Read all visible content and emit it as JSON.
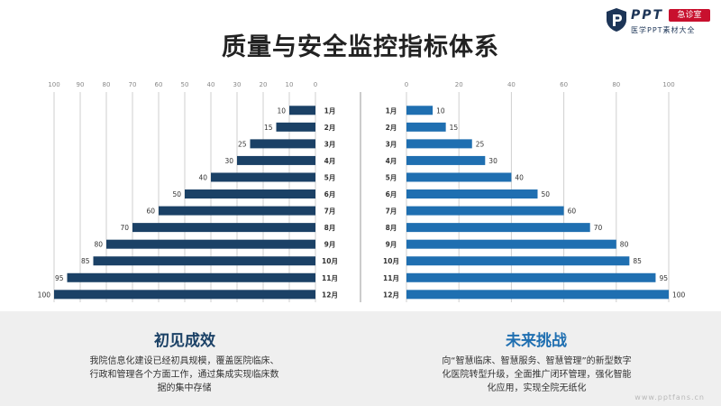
{
  "logo": {
    "mark": "PPT",
    "badge": "急诊室",
    "subtitle": "医学PPT素材大全"
  },
  "title": "质量与安全监控指标体系",
  "colors": {
    "left_bar": "#1b4166",
    "right_bar": "#1f6fb1",
    "grid": "#cfcfcf"
  },
  "chart_data": [
    {
      "type": "bar",
      "orientation": "horizontal-reversed",
      "categories": [
        "1月",
        "2月",
        "3月",
        "4月",
        "5月",
        "6月",
        "7月",
        "8月",
        "9月",
        "10月",
        "11月",
        "12月"
      ],
      "values": [
        10,
        15,
        25,
        30,
        40,
        50,
        60,
        70,
        80,
        85,
        95,
        100
      ],
      "xlim": [
        0,
        100
      ],
      "xticks": [
        "100",
        "90",
        "80",
        "70",
        "60",
        "50",
        "40",
        "30",
        "20",
        "10",
        "0"
      ],
      "grid": true
    },
    {
      "type": "bar",
      "orientation": "horizontal",
      "categories": [
        "1月",
        "2月",
        "3月",
        "4月",
        "5月",
        "6月",
        "7月",
        "8月",
        "9月",
        "10月",
        "11月",
        "12月"
      ],
      "values": [
        10,
        15,
        25,
        30,
        40,
        50,
        60,
        70,
        80,
        85,
        95,
        100
      ],
      "xlim": [
        0,
        100
      ],
      "xticks": [
        "0",
        "20",
        "40",
        "60",
        "80",
        "100"
      ],
      "grid": true
    }
  ],
  "left_panel": {
    "heading": "初见成效",
    "text": "我院信息化建设已经初具规模，覆盖医院临床、行政和管理各个方面工作，通过集成实现临床数据的集中存储"
  },
  "right_panel": {
    "heading": "未来挑战",
    "text": "向“智慧临床、智慧服务、智慧管理”的新型数字化医院转型升级，全面推广闭环管理，强化智能化应用，实现全院无纸化"
  },
  "watermark": "www.pptfans.cn"
}
